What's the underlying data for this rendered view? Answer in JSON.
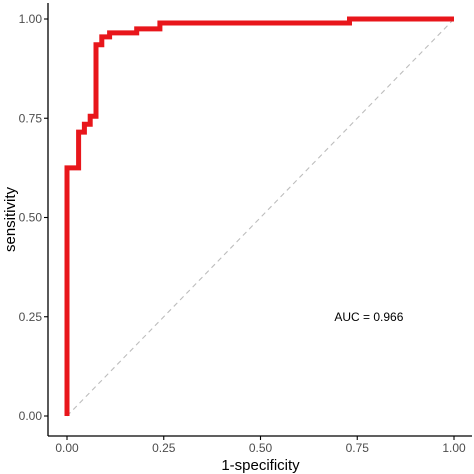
{
  "chart_data": {
    "type": "line",
    "title": "",
    "xlabel": "1-specificity",
    "ylabel": "sensitivity",
    "xlim": [
      0,
      1
    ],
    "ylim": [
      0,
      1
    ],
    "x_ticks": [
      "0.00",
      "0.25",
      "0.50",
      "0.75",
      "1.00"
    ],
    "y_ticks": [
      "0.00",
      "0.25",
      "0.50",
      "0.75",
      "1.00"
    ],
    "grid": false,
    "legend": "none",
    "annotation": {
      "text": "AUC = 0.966",
      "x": 0.78,
      "y": 0.25
    },
    "reference_line": {
      "style": "dashed",
      "color": "#bdbdbd",
      "points": [
        [
          0,
          0
        ],
        [
          1,
          1
        ]
      ]
    },
    "series": [
      {
        "color": "#e8161b",
        "points": [
          [
            0.0,
            0.0
          ],
          [
            0.0,
            0.625
          ],
          [
            0.03,
            0.625
          ],
          [
            0.03,
            0.715
          ],
          [
            0.045,
            0.715
          ],
          [
            0.045,
            0.735
          ],
          [
            0.06,
            0.735
          ],
          [
            0.06,
            0.755
          ],
          [
            0.075,
            0.755
          ],
          [
            0.075,
            0.935
          ],
          [
            0.09,
            0.935
          ],
          [
            0.09,
            0.955
          ],
          [
            0.11,
            0.955
          ],
          [
            0.11,
            0.965
          ],
          [
            0.18,
            0.965
          ],
          [
            0.18,
            0.975
          ],
          [
            0.24,
            0.975
          ],
          [
            0.24,
            0.99
          ],
          [
            0.73,
            0.99
          ],
          [
            0.73,
            1.0
          ],
          [
            1.0,
            1.0
          ]
        ]
      }
    ]
  }
}
